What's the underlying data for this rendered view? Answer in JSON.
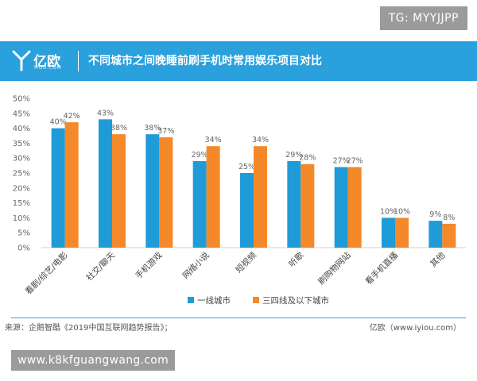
{
  "watermark_top": "TG: MYYJJPP",
  "header": {
    "logo_text": "亿欧",
    "logo_sub": "YIOU.COM",
    "title": "不同城市之间晚睡前刷手机时常用娱乐项目对比"
  },
  "colors": {
    "header": "#2aa0dc",
    "series1": "#1f9bd7",
    "series2": "#f5892a"
  },
  "chart_data": {
    "type": "bar",
    "categories": [
      "看剧/综艺/电影",
      "社交/聊天",
      "手机游戏",
      "网络小说",
      "短视频",
      "听歌",
      "刷购物网站",
      "看手机直播",
      "其他"
    ],
    "series": [
      {
        "name": "一线城市",
        "values": [
          40,
          43,
          38,
          29,
          25,
          29,
          27,
          10,
          9
        ]
      },
      {
        "name": "三四线及以下城市",
        "values": [
          42,
          38,
          37,
          34,
          34,
          28,
          27,
          10,
          8
        ]
      }
    ],
    "y_ticks": [
      "0%",
      "5%",
      "10%",
      "15%",
      "20%",
      "25%",
      "30%",
      "35%",
      "40%",
      "45%",
      "50%"
    ],
    "ylim": [
      0,
      50
    ],
    "unit": "%",
    "legend_position": "bottom-right",
    "grid": false
  },
  "footer": {
    "source": "来源：企鹅智酷《2019中国互联网趋势报告》；",
    "brand": "亿欧（www.iyiou.com）"
  },
  "watermark_bottom": "www.k8kfguangwang.com"
}
